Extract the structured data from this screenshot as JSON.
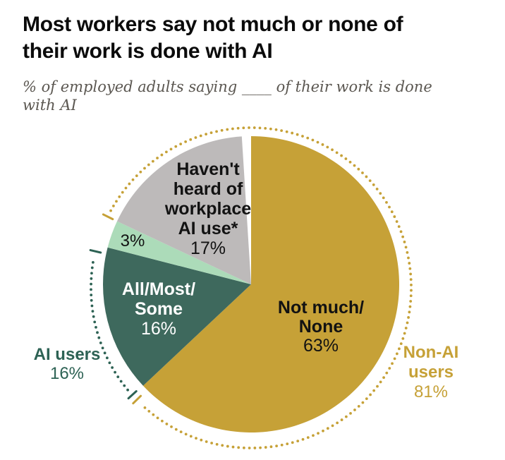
{
  "title": {
    "text": "Most workers say not much or none of their work is done with AI",
    "lines": [
      "Most workers say not much or none of",
      "their work is done with AI"
    ]
  },
  "subtitle": {
    "text": "% of employed adults saying ____ of their work is done with AI",
    "lines": [
      "% of employed adults saying ____ of their work is done",
      "with AI"
    ]
  },
  "colors": {
    "background": "#FFFFFF",
    "title_text": "#0B0B0B",
    "subtitle_text": "#5B5751",
    "gold": "#C6A137",
    "teal": "#3E695D",
    "teal_accent": "#2D6254",
    "mint": "#ACDBB9",
    "gray": "#BDBABA",
    "black_label": "#121212",
    "white_label": "#FFFFFF"
  },
  "chart_data": {
    "type": "pie",
    "units": "%",
    "start_position": "top",
    "direction": "clockwise",
    "grid": false,
    "legend_position": "none",
    "slices": [
      {
        "label": "Not much/None",
        "label_lines": [
          "Not much/",
          "None"
        ],
        "value": 63,
        "value_label": "63%",
        "color": "#C6A137",
        "label_text_color": "#121212"
      },
      {
        "label": "All/Most/Some",
        "label_lines": [
          "All/Most/",
          "Some"
        ],
        "value": 16,
        "value_label": "16%",
        "color": "#3E695D",
        "label_text_color": "#FFFFFF"
      },
      {
        "label": "",
        "label_lines": [],
        "value": 3,
        "value_label": "3%",
        "color": "#ACDBB9",
        "label_text_color": "#121212"
      },
      {
        "label": "Haven't heard of workplace AI use*",
        "label_lines": [
          "Haven't",
          "heard of",
          "workplace",
          "AI use*"
        ],
        "value": 17,
        "value_label": "17%",
        "color": "#BDBABA",
        "label_text_color": "#121212"
      }
    ],
    "groups": [
      {
        "label": "AI users",
        "label_lines": [
          "AI users"
        ],
        "value": 16,
        "value_label": "16%",
        "from_pct": 63,
        "to_pct": 79,
        "color": "#2D6254",
        "style": "dotted-arc-with-ticks"
      },
      {
        "label": "Non-AI users",
        "label_lines": [
          "Non-AI",
          "users"
        ],
        "value": 81,
        "value_label": "81%",
        "from_pct": 82,
        "to_pct": 163,
        "color": "#C6A137",
        "style": "dotted-arc-with-ticks"
      }
    ]
  }
}
